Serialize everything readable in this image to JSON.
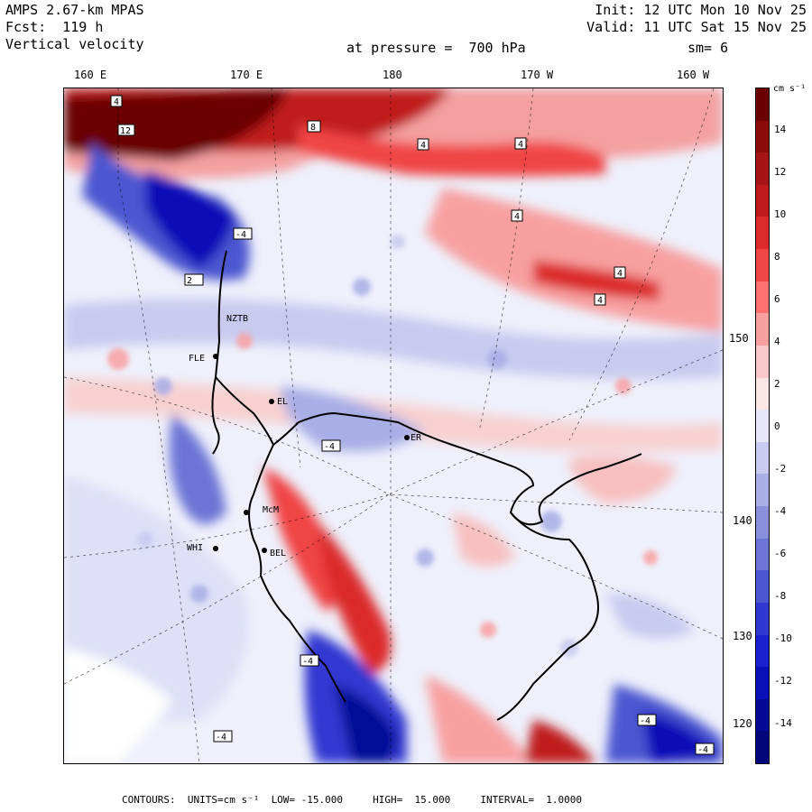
{
  "header": {
    "model": "AMPS 2.67-km MPAS",
    "forecast": "Fcst:  119 h",
    "field": "Vertical velocity",
    "init": "Init: 12 UTC Mon 10 Nov 25",
    "valid": "Valid: 11 UTC Sat 15 Nov 25",
    "pressure": "at pressure =  700 hPa",
    "smoothing": "sm= 6"
  },
  "longitude_labels": [
    "160 E",
    "170 E",
    "180",
    "170 W",
    "160 W"
  ],
  "latitude_labels": [
    "150 W",
    "140 W",
    "130 W",
    "120 W"
  ],
  "colorbar": {
    "unit": "cm s⁻¹",
    "ticks": [
      "14",
      "12",
      "10",
      "8",
      "6",
      "4",
      "2",
      "0",
      "-2",
      "-4",
      "-6",
      "-8",
      "-10",
      "-12",
      "-14"
    ],
    "colors": [
      "#6b0000",
      "#8b0a0a",
      "#a51515",
      "#c01b1b",
      "#dc2a2a",
      "#f04545",
      "#ff7070",
      "#f8a0a0",
      "#fac8c8",
      "#fbe6e6",
      "#e6e6f8",
      "#c8caf0",
      "#a8aee6",
      "#8890dc",
      "#6c74d6",
      "#4c56d0",
      "#3038d0",
      "#1a20d0",
      "#0a10b8",
      "#050a96",
      "#02067a"
    ]
  },
  "map_labels": {
    "station_labels": [
      "NZTB",
      "FLE",
      "WHI",
      "BEL",
      "EL",
      "ER",
      "McM"
    ],
    "contour_box_labels": [
      "4",
      "12",
      "8",
      "-4",
      "2"
    ]
  },
  "footer": "CONTOURS:  UNITS=cm s⁻¹  LOW= -15.000     HIGH=  15.000     INTERVAL=  1.0000",
  "colors": {
    "strong_up": "#8b0a0a",
    "up": "#f04545",
    "weak_up": "#fac8c8",
    "weak_down": "#c8caf0",
    "down": "#4c56d0",
    "strong_down": "#0a10b8"
  }
}
